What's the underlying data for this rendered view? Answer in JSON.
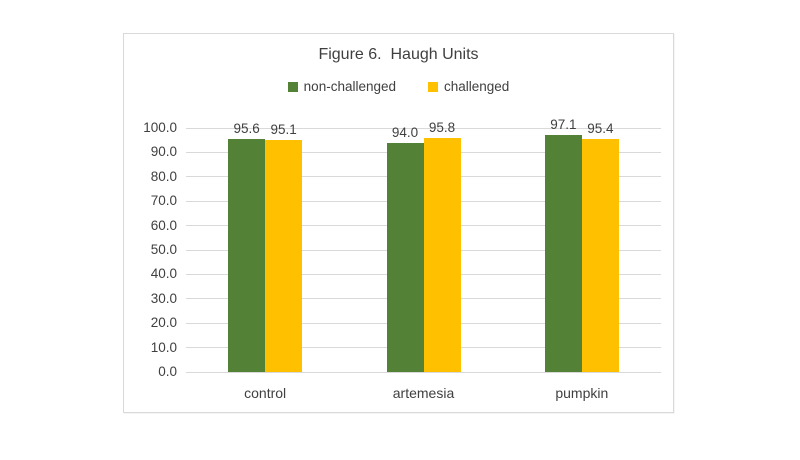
{
  "chart_data": {
    "type": "bar",
    "title": "Figure 6.  Haugh Units",
    "categories": [
      "control",
      "artemesia",
      "pumpkin"
    ],
    "series": [
      {
        "name": "non-challenged",
        "color": "#538135",
        "values": [
          95.6,
          94.0,
          97.1
        ]
      },
      {
        "name": "challenged",
        "color": "#FFC000",
        "values": [
          95.1,
          95.8,
          95.4
        ]
      }
    ],
    "data_labels": [
      "95.6",
      "95.1",
      "94.0",
      "95.8",
      "97.1",
      "95.4"
    ],
    "ylim": [
      0,
      100
    ],
    "yticks": [
      0,
      10,
      20,
      30,
      40,
      50,
      60,
      70,
      80,
      90,
      100
    ],
    "ytick_format_decimals": 1,
    "xlabel": "",
    "ylabel": "",
    "grid": "horizontal",
    "legend_position": "top",
    "colors": {
      "text": "#404040",
      "gridline": "#d9d9d9",
      "card_border": "#d9d9d9",
      "background": "#ffffff"
    }
  }
}
